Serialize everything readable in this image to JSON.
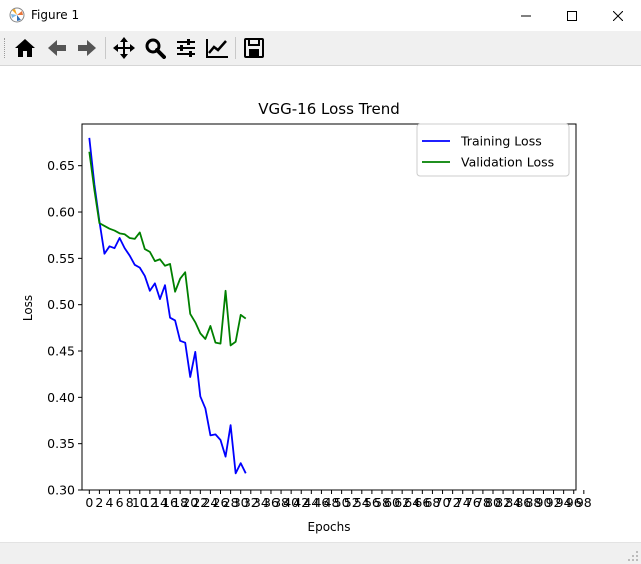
{
  "window": {
    "title": "Figure 1"
  },
  "toolbar": {
    "buttons": [
      {
        "name": "home-icon"
      },
      {
        "name": "back-icon"
      },
      {
        "name": "forward-icon"
      },
      {
        "name": "pan-icon"
      },
      {
        "name": "zoom-icon"
      },
      {
        "name": "configure-subplots-icon"
      },
      {
        "name": "edit-axis-icon"
      },
      {
        "name": "save-icon"
      }
    ]
  },
  "colors": {
    "training": "#0000ff",
    "validation": "#008000"
  },
  "chart_data": {
    "type": "line",
    "title": "VGG-16 Loss Trend",
    "xlabel": "Epochs",
    "ylabel": "Loss",
    "xlim": [
      -1.45,
      96.45
    ],
    "ylim": [
      0.3,
      0.695
    ],
    "xticks": [
      0,
      2,
      4,
      6,
      8,
      10,
      12,
      14,
      16,
      18,
      20,
      22,
      24,
      26,
      28,
      30,
      32,
      34,
      36,
      38,
      40,
      42,
      44,
      46,
      48,
      50,
      52,
      54,
      56,
      58,
      60,
      62,
      64,
      66,
      68,
      70,
      72,
      74,
      76,
      78,
      80,
      82,
      84,
      86,
      88,
      90,
      92,
      94,
      96,
      98
    ],
    "yticks": [
      "0.30",
      "0.35",
      "0.40",
      "0.45",
      "0.50",
      "0.55",
      "0.60",
      "0.65"
    ],
    "legend": "upper right",
    "grid": false,
    "series": [
      {
        "name": "Training Loss",
        "color": "#0000ff",
        "x": [
          0,
          1,
          2,
          3,
          4,
          5,
          6,
          7,
          8,
          9,
          10,
          11,
          12,
          13,
          14,
          15,
          16,
          17,
          18,
          19,
          20,
          21,
          22,
          23,
          24,
          25,
          26,
          27,
          28,
          29,
          30,
          31
        ],
        "y": [
          0.68,
          0.63,
          0.59,
          0.555,
          0.563,
          0.561,
          0.572,
          0.561,
          0.553,
          0.543,
          0.54,
          0.531,
          0.515,
          0.523,
          0.506,
          0.521,
          0.486,
          0.483,
          0.461,
          0.459,
          0.422,
          0.449,
          0.401,
          0.388,
          0.359,
          0.36,
          0.354,
          0.336,
          0.37,
          0.318,
          0.329,
          0.318
        ]
      },
      {
        "name": "Validation Loss",
        "color": "#008000",
        "x": [
          0,
          1,
          2,
          3,
          4,
          5,
          6,
          7,
          8,
          9,
          10,
          11,
          12,
          13,
          14,
          15,
          16,
          17,
          18,
          19,
          20,
          21,
          22,
          23,
          24,
          25,
          26,
          27,
          28,
          29,
          30,
          31
        ],
        "y": [
          0.665,
          0.624,
          0.588,
          0.585,
          0.582,
          0.58,
          0.577,
          0.576,
          0.572,
          0.571,
          0.578,
          0.56,
          0.557,
          0.547,
          0.549,
          0.542,
          0.544,
          0.514,
          0.528,
          0.535,
          0.49,
          0.481,
          0.469,
          0.463,
          0.477,
          0.459,
          0.458,
          0.515,
          0.456,
          0.46,
          0.489,
          0.485
        ]
      }
    ]
  }
}
